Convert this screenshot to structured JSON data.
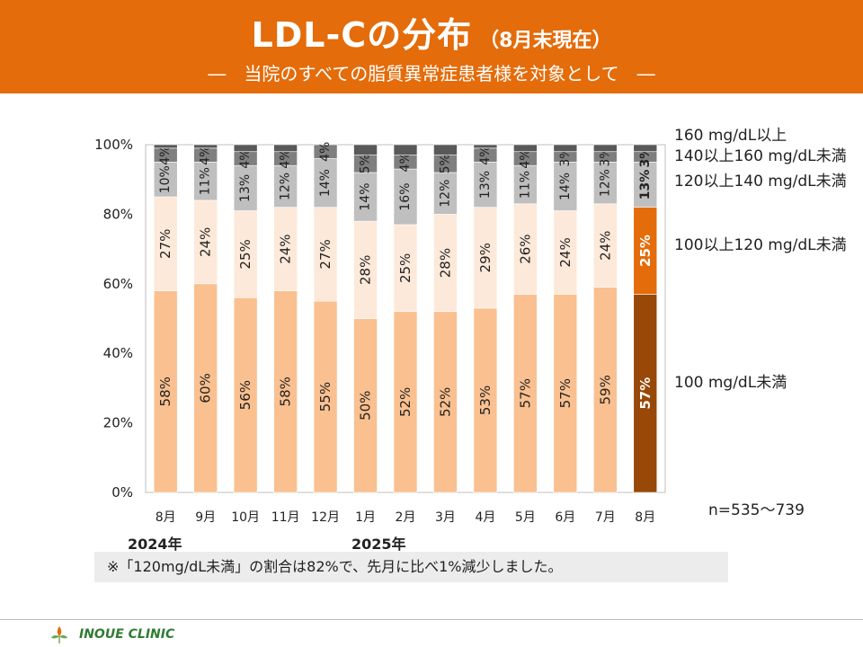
{
  "header": {
    "title": "LDL-Cの分布",
    "title_sub": "（8月末現在）",
    "subtitle": "―　当院のすべての脂質異常症患者様を対象として　―"
  },
  "chart_data": {
    "type": "bar",
    "stacked": true,
    "percent": true,
    "ylim": [
      0,
      100
    ],
    "y_ticks": [
      "0%",
      "20%",
      "40%",
      "60%",
      "80%",
      "100%"
    ],
    "categories": [
      "8月",
      "9月",
      "10月",
      "11月",
      "12月",
      "1月",
      "2月",
      "3月",
      "4月",
      "5月",
      "6月",
      "7月",
      "8月"
    ],
    "legend_position": "right",
    "highlight_index": 12,
    "series": [
      {
        "name": "100 mg/dL未満",
        "values": [
          58,
          60,
          56,
          58,
          55,
          50,
          52,
          52,
          53,
          57,
          57,
          59,
          57
        ],
        "color": "#fac090",
        "highlight_color": "#984807",
        "labels": [
          "58%",
          "60%",
          "56%",
          "58%",
          "55%",
          "50%",
          "52%",
          "52%",
          "53%",
          "57%",
          "57%",
          "59%",
          "57%"
        ]
      },
      {
        "name": "100以上120 mg/dL未満",
        "values": [
          27,
          24,
          25,
          24,
          27,
          28,
          25,
          28,
          29,
          26,
          24,
          24,
          25
        ],
        "color": "#fde9d9",
        "highlight_color": "#e46c0a",
        "labels": [
          "27%",
          "24%",
          "25%",
          "24%",
          "27%",
          "28%",
          "25%",
          "28%",
          "29%",
          "26%",
          "24%",
          "24%",
          "25%"
        ]
      },
      {
        "name": "120以上140 mg/dL未満",
        "values": [
          10,
          11,
          13,
          12,
          14,
          14,
          16,
          12,
          13,
          11,
          14,
          12,
          13
        ],
        "color": "#bfbfbf",
        "highlight_color": "#bfbfbf",
        "labels": [
          "10%",
          "11%",
          "13%",
          "12%",
          "14%",
          "14%",
          "16%",
          "12%",
          "13%",
          "11%",
          "14%",
          "12%",
          "13%"
        ]
      },
      {
        "name": "140以上160 mg/dL未満",
        "values": [
          4,
          4,
          4,
          4,
          4,
          5,
          4,
          5,
          4,
          4,
          3,
          3,
          3
        ],
        "color": "#7f7f7f",
        "highlight_color": "#7f7f7f",
        "labels": [
          "4%",
          "4%",
          "4%",
          "4%",
          "4%",
          "5%",
          "4%",
          "5%",
          "4%",
          "4%",
          "3%",
          "3%",
          "3%"
        ]
      },
      {
        "name": "160 mg/dL以上",
        "values": [
          1,
          1,
          2,
          2,
          0,
          3,
          3,
          3,
          1,
          2,
          2,
          2,
          2
        ],
        "color": "#595959",
        "highlight_color": "#595959",
        "labels": [
          "",
          "",
          "",
          "",
          "",
          "",
          "",
          "",
          "",
          "",
          "",
          "",
          ""
        ]
      }
    ],
    "n_label": "n=535～739",
    "year_labels": {
      "y2024": "2024年",
      "y2025": "2025年"
    }
  },
  "note": "※「120mg/dL未満」の割合は82%で、先月に比べ1%減少しました。",
  "footer": {
    "clinic_name": "INOUE CLINIC"
  },
  "colors": {
    "banner": "#e46c0a",
    "clinic_text": "#2e7d32"
  }
}
